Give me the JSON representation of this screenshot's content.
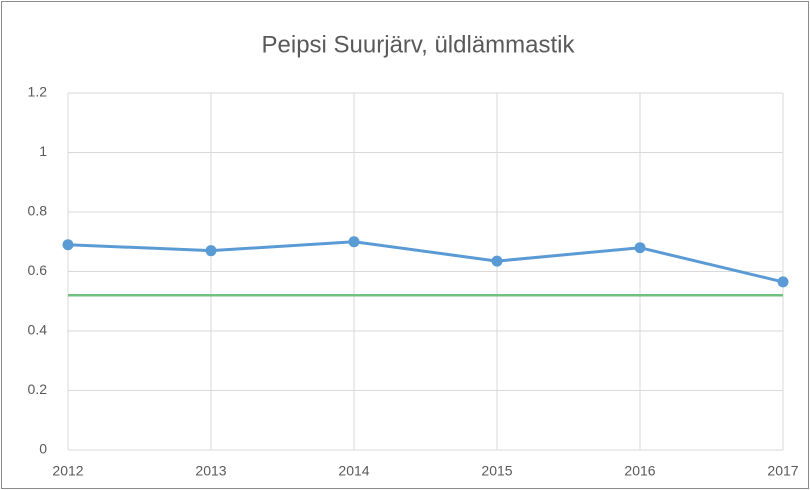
{
  "chart_data": {
    "type": "line",
    "title": "Peipsi Suurjärv, üldlämmastik",
    "x": [
      2012,
      2013,
      2014,
      2015,
      2016,
      2017
    ],
    "series": [
      {
        "color": "#5b9bd5",
        "values": [
          0.69,
          0.67,
          0.7,
          0.635,
          0.68,
          0.565
        ]
      }
    ],
    "reference_line": {
      "value": 0.52,
      "color": "#70c17f"
    },
    "xlim": [
      2012,
      2017
    ],
    "xticks": [
      2012,
      2013,
      2014,
      2015,
      2016,
      2017
    ],
    "ylim": [
      0,
      1.2
    ],
    "yticks": [
      0,
      0.2,
      0.4,
      0.6,
      0.8,
      1,
      1.2
    ],
    "grid": true
  }
}
